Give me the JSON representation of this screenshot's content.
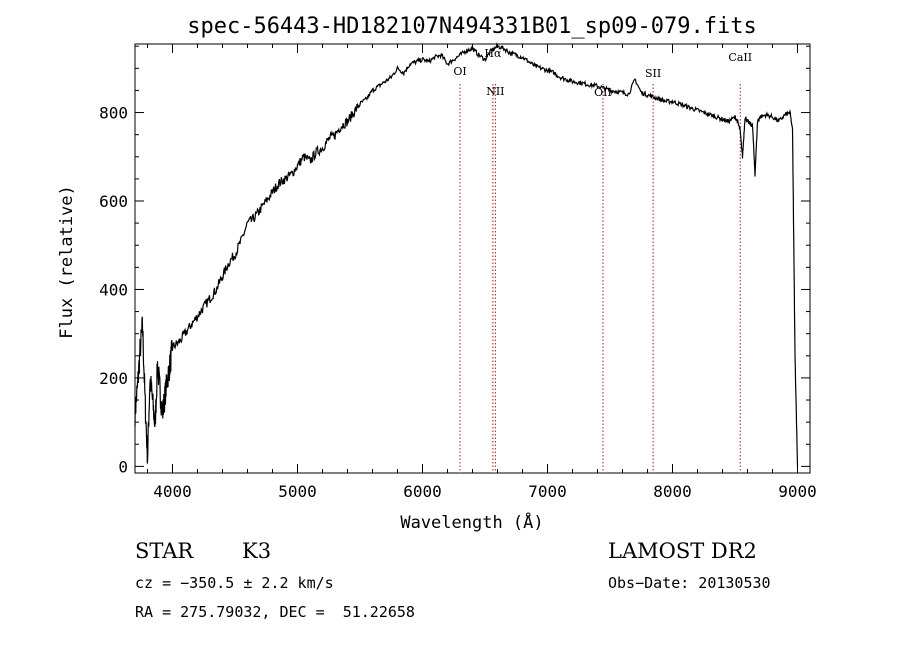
{
  "chart_data": {
    "type": "line",
    "title": "spec-56443-HD182107N494331B01_sp09-079.fits",
    "xlabel": "Wavelength (Å)",
    "ylabel": "Flux (relative)",
    "xlim": [
      3700,
      9100
    ],
    "ylim": [
      -15,
      955
    ],
    "xticks": [
      4000,
      5000,
      6000,
      7000,
      8000,
      9000
    ],
    "yticks": [
      0,
      200,
      400,
      600,
      800
    ],
    "grid": false,
    "series": [
      {
        "x": [
          3700,
          3720,
          3740,
          3760,
          3780,
          3800,
          3820,
          3840,
          3860,
          3880,
          3900,
          3920,
          3940,
          3960,
          3980,
          4000,
          4050,
          4100,
          4150,
          4200,
          4250,
          4300,
          4350,
          4400,
          4450,
          4500,
          4550,
          4600,
          4650,
          4700,
          4750,
          4800,
          4850,
          4900,
          4950,
          5000,
          5050,
          5100,
          5150,
          5200,
          5250,
          5300,
          5350,
          5400,
          5450,
          5500,
          5550,
          5600,
          5650,
          5700,
          5750,
          5800,
          5850,
          5900,
          5950,
          6000,
          6050,
          6100,
          6150,
          6200,
          6250,
          6300,
          6350,
          6400,
          6450,
          6500,
          6550,
          6600,
          6650,
          6700,
          6750,
          6800,
          6850,
          6900,
          6950,
          7000,
          7050,
          7100,
          7150,
          7200,
          7250,
          7300,
          7350,
          7400,
          7450,
          7500,
          7550,
          7600,
          7650,
          7700,
          7750,
          7800,
          7850,
          7900,
          7950,
          8000,
          8050,
          8100,
          8150,
          8200,
          8250,
          8300,
          8350,
          8400,
          8450,
          8500,
          8520,
          8540,
          8560,
          8580,
          8600,
          8620,
          8640,
          8660,
          8680,
          8700,
          8750,
          8800,
          8850,
          8900,
          8940,
          8960,
          8980,
          9000
        ],
        "y": [
          120,
          180,
          260,
          320,
          150,
          20,
          200,
          150,
          90,
          230,
          170,
          120,
          160,
          200,
          230,
          270,
          280,
          300,
          320,
          340,
          360,
          380,
          400,
          430,
          460,
          480,
          510,
          550,
          560,
          580,
          600,
          620,
          640,
          650,
          660,
          680,
          700,
          690,
          710,
          720,
          740,
          750,
          770,
          780,
          800,
          820,
          830,
          850,
          860,
          870,
          880,
          900,
          890,
          910,
          915,
          920,
          915,
          925,
          930,
          910,
          920,
          930,
          940,
          945,
          930,
          920,
          940,
          950,
          945,
          935,
          930,
          925,
          915,
          905,
          900,
          895,
          890,
          880,
          875,
          870,
          868,
          865,
          862,
          860,
          855,
          850,
          848,
          845,
          842,
          875,
          845,
          840,
          835,
          830,
          825,
          825,
          820,
          815,
          810,
          805,
          800,
          795,
          790,
          785,
          780,
          790,
          780,
          760,
          700,
          790,
          780,
          775,
          770,
          660,
          780,
          790,
          795,
          790,
          780,
          795,
          800,
          760,
          250,
          0
        ]
      }
    ],
    "lines": [
      {
        "x": 6300,
        "label": "OI"
      },
      {
        "x": 6563,
        "label": "Hα"
      },
      {
        "x": 6583,
        "label": "NII"
      },
      {
        "x": 7444,
        "label": "OII"
      },
      {
        "x": 7845,
        "label": "SII"
      },
      {
        "x": 8542,
        "label": "CaII"
      }
    ],
    "colors": {
      "axis": "#000000",
      "spectrum": "#000000",
      "lines": "#a0201e"
    }
  },
  "info": {
    "left_type": "STAR",
    "left_subclass": "K3",
    "cz": "cz = −350.5 ± 2.2 km/s",
    "radec": "RA = 275.79032, DEC =  51.22658",
    "survey": "LAMOST DR2",
    "obsdate": "Obs−Date: 20130530"
  }
}
